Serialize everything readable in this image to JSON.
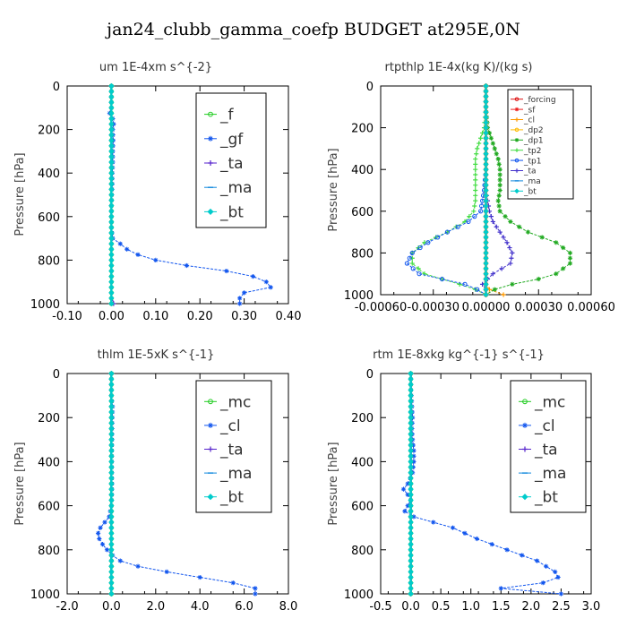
{
  "figure": {
    "title": "jan24_clubb_gamma_coefp  BUDGET at295E,0N"
  },
  "colors": {
    "green": "#22cc22",
    "blue": "#1155ee",
    "purple": "#5522cc",
    "cyan": "#00cccc",
    "red": "#dd1111",
    "orange": "#ff9900",
    "navy": "#003399"
  },
  "chart_data": [
    {
      "type": "line",
      "title": "um   1E-4xm  s^{-2}",
      "ylabel": "Pressure [hPa]",
      "xlim": [
        -0.1,
        0.4
      ],
      "ylim": [
        1000,
        0
      ],
      "xticks": [
        "-0.10",
        "0.00",
        "0.10",
        "0.20",
        "0.30",
        "0.40"
      ],
      "yticks": [
        "0",
        "200",
        "400",
        "600",
        "800",
        "1000"
      ],
      "legend_position": "top-right",
      "legend_large": true,
      "series": [
        {
          "name": "_f",
          "color": "#22cc22",
          "marker": "circle",
          "p": [
            0,
            1000
          ],
          "v": [
            0.0,
            0.0
          ]
        },
        {
          "name": "_gf",
          "color": "#1155ee",
          "marker": "star",
          "p": [
            0,
            50,
            100,
            125,
            150,
            175,
            200,
            250,
            300,
            350,
            400,
            450,
            500,
            550,
            600,
            650,
            700,
            725,
            750,
            775,
            800,
            825,
            850,
            875,
            900,
            925,
            950,
            975,
            1000
          ],
          "v": [
            0.0,
            0.0,
            0.0,
            -0.004,
            0.003,
            0.005,
            0.003,
            0.004,
            0.003,
            0.003,
            0.002,
            0.002,
            0.001,
            0.0,
            0.0,
            0.0,
            0.003,
            0.02,
            0.035,
            0.06,
            0.1,
            0.17,
            0.26,
            0.32,
            0.35,
            0.36,
            0.3,
            0.29,
            0.29
          ]
        },
        {
          "name": "_ta",
          "color": "#5522cc",
          "marker": "plus",
          "p": [
            0,
            980,
            990,
            1000
          ],
          "v": [
            0.0,
            0.0,
            0.005,
            0.005
          ]
        },
        {
          "name": "_ma",
          "color": "#1188dd",
          "marker": "dash",
          "p": [
            0,
            1000
          ],
          "v": [
            0.0,
            0.0
          ]
        },
        {
          "name": "_bt",
          "color": "#00cccc",
          "marker": "diamond",
          "p": [
            0,
            1000
          ],
          "v": [
            0.0,
            0.0
          ]
        }
      ]
    },
    {
      "type": "line",
      "title": "rtpthlp   1E-4x(kg K)/(kg s)",
      "ylabel": "Pressure [hPa]",
      "xlim": [
        -0.0006,
        0.0006
      ],
      "ylim": [
        1000,
        0
      ],
      "xticks": [
        "-0.00060",
        "-0.00030",
        "0.00000",
        "0.00030",
        "0.00060"
      ],
      "yticks": [
        "0",
        "200",
        "400",
        "600",
        "800",
        "1000"
      ],
      "legend_position": "top-right",
      "legend_large": false,
      "series": [
        {
          "name": "_forcing",
          "color": "#dd1111",
          "marker": "circle",
          "p": [
            0,
            1000
          ],
          "v": [
            0.0,
            0.0
          ]
        },
        {
          "name": "_sf",
          "color": "#ee2222",
          "marker": "star",
          "p": [
            0,
            1000
          ],
          "v": [
            0.0,
            0.0
          ]
        },
        {
          "name": "_cl",
          "color": "#ff9900",
          "marker": "plus",
          "p": [
            0,
            950,
            975,
            1000
          ],
          "v": [
            0.0,
            0.0,
            2e-05,
            0.0001
          ]
        },
        {
          "name": "_dp2",
          "color": "#ffbb00",
          "marker": "circle",
          "p": [
            0,
            1000
          ],
          "v": [
            0.0,
            0.0
          ]
        },
        {
          "name": "_dp1",
          "color": "#22aa22",
          "marker": "star",
          "p": [
            0,
            100,
            200,
            250,
            300,
            350,
            400,
            450,
            500,
            550,
            600,
            650,
            700,
            750,
            800,
            850,
            900,
            925,
            950,
            975,
            1000
          ],
          "v": [
            0.0,
            0.0,
            1e-05,
            3e-05,
            5e-05,
            7e-05,
            8e-05,
            8e-05,
            8e-05,
            7e-05,
            8e-05,
            0.00014,
            0.00024,
            0.0004,
            0.00048,
            0.00048,
            0.0004,
            0.0003,
            0.00015,
            5e-05,
            0.0
          ]
        },
        {
          "name": "_tp2",
          "color": "#44dd44",
          "marker": "plus",
          "p": [
            0,
            100,
            200,
            250,
            300,
            350,
            400,
            450,
            500,
            550,
            600,
            650,
            700,
            750,
            800,
            850,
            900,
            925,
            950,
            975,
            1000
          ],
          "v": [
            0.0,
            0.0,
            -1e-05,
            -3e-05,
            -5e-05,
            -6e-05,
            -6e-05,
            -6e-05,
            -6e-05,
            -6e-05,
            -7e-05,
            -0.00012,
            -0.00022,
            -0.00035,
            -0.00042,
            -0.00042,
            -0.00035,
            -0.00025,
            -0.00015,
            -6e-05,
            0.0
          ]
        },
        {
          "name": "_tp1",
          "color": "#1155ee",
          "marker": "circle",
          "p": [
            0,
            400,
            500,
            600,
            650,
            700,
            750,
            800,
            850,
            900,
            925,
            950,
            975,
            1000
          ],
          "v": [
            0.0,
            0.0,
            -1e-05,
            -3e-05,
            -0.0001,
            -0.00022,
            -0.00033,
            -0.00042,
            -0.00045,
            -0.00038,
            -0.00025,
            -0.00012,
            -5e-05,
            0.0
          ]
        },
        {
          "name": "_ta",
          "color": "#4433cc",
          "marker": "plus",
          "p": [
            0,
            500,
            600,
            650,
            700,
            750,
            800,
            850,
            900,
            950,
            975,
            1000
          ],
          "v": [
            0.0,
            0.0,
            2e-05,
            4e-05,
            8e-05,
            0.00012,
            0.00015,
            0.00014,
            4e-05,
            -2e-05,
            0.0,
            0.0
          ]
        },
        {
          "name": "_ma",
          "color": "#1188dd",
          "marker": "dash",
          "p": [
            0,
            1000
          ],
          "v": [
            0.0,
            0.0
          ]
        },
        {
          "name": "_bt",
          "color": "#00cccc",
          "marker": "diamond",
          "p": [
            0,
            1000
          ],
          "v": [
            0.0,
            0.0
          ]
        }
      ]
    },
    {
      "type": "line",
      "title": "thlm   1E-5xK  s^{-1}",
      "ylabel": "Pressure [hPa]",
      "xlim": [
        -2.0,
        8.0
      ],
      "ylim": [
        1000,
        0
      ],
      "xticks": [
        "-2.0",
        "0.0",
        "2.0",
        "4.0",
        "6.0",
        "8.0"
      ],
      "yticks": [
        "0",
        "200",
        "400",
        "600",
        "800",
        "1000"
      ],
      "legend_position": "top-right",
      "legend_large": true,
      "series": [
        {
          "name": "_mc",
          "color": "#22cc22",
          "marker": "circle",
          "p": [
            0,
            1000
          ],
          "v": [
            0.0,
            0.0
          ]
        },
        {
          "name": "_cl",
          "color": "#1155ee",
          "marker": "star",
          "p": [
            0,
            50,
            100,
            150,
            200,
            250,
            300,
            350,
            400,
            450,
            500,
            550,
            600,
            650,
            675,
            700,
            725,
            750,
            775,
            800,
            825,
            850,
            875,
            900,
            925,
            950,
            975,
            1000
          ],
          "v": [
            0.0,
            0.0,
            0.0,
            0.05,
            0.04,
            0.03,
            0.03,
            0.02,
            0.02,
            0.02,
            0.03,
            0.02,
            0.0,
            -0.1,
            -0.3,
            -0.5,
            -0.6,
            -0.55,
            -0.4,
            -0.2,
            0.05,
            0.4,
            1.2,
            2.5,
            4.0,
            5.5,
            6.5,
            6.5
          ]
        },
        {
          "name": "_ta",
          "color": "#5522cc",
          "marker": "plus",
          "p": [
            0,
            1000
          ],
          "v": [
            0.0,
            0.0
          ]
        },
        {
          "name": "_ma",
          "color": "#1188dd",
          "marker": "dash",
          "p": [
            0,
            1000
          ],
          "v": [
            0.0,
            0.0
          ]
        },
        {
          "name": "_bt",
          "color": "#00cccc",
          "marker": "diamond",
          "p": [
            0,
            1000
          ],
          "v": [
            0.0,
            0.0
          ]
        }
      ]
    },
    {
      "type": "line",
      "title": "rtm   1E-8xkg  kg^{-1} s^{-1}",
      "ylabel": "Pressure [hPa]",
      "xlim": [
        -0.5,
        3.0
      ],
      "ylim": [
        1000,
        0
      ],
      "xticks": [
        "-0.5",
        "0.0",
        "0.5",
        "1.0",
        "1.5",
        "2.0",
        "2.5",
        "3.0"
      ],
      "yticks": [
        "0",
        "200",
        "400",
        "600",
        "800",
        "1000"
      ],
      "legend_position": "top-right",
      "legend_large": true,
      "series": [
        {
          "name": "_mc",
          "color": "#22cc22",
          "marker": "circle",
          "p": [
            0,
            1000
          ],
          "v": [
            0.0,
            0.0
          ]
        },
        {
          "name": "_cl",
          "color": "#1155ee",
          "marker": "star",
          "p": [
            0,
            50,
            100,
            150,
            200,
            250,
            300,
            350,
            400,
            450,
            500,
            525,
            550,
            575,
            600,
            625,
            650,
            700,
            750,
            800,
            850,
            900,
            925,
            950,
            975,
            1000
          ],
          "v": [
            0.0,
            0.0,
            0.01,
            0.02,
            0.03,
            0.02,
            0.03,
            0.05,
            0.05,
            0.03,
            -0.05,
            -0.12,
            -0.05,
            0.0,
            -0.05,
            -0.1,
            0.05,
            0.7,
            1.1,
            1.6,
            2.1,
            2.4,
            2.45,
            2.2,
            1.5,
            2.5
          ]
        },
        {
          "name": "_ta",
          "color": "#5522cc",
          "marker": "plus",
          "p": [
            0,
            1000
          ],
          "v": [
            0.0,
            0.0
          ]
        },
        {
          "name": "_ma",
          "color": "#1188dd",
          "marker": "dash",
          "p": [
            0,
            1000
          ],
          "v": [
            0.0,
            0.0
          ]
        },
        {
          "name": "_bt",
          "color": "#00cccc",
          "marker": "diamond",
          "p": [
            0,
            1000
          ],
          "v": [
            0.0,
            0.0
          ]
        }
      ]
    }
  ]
}
